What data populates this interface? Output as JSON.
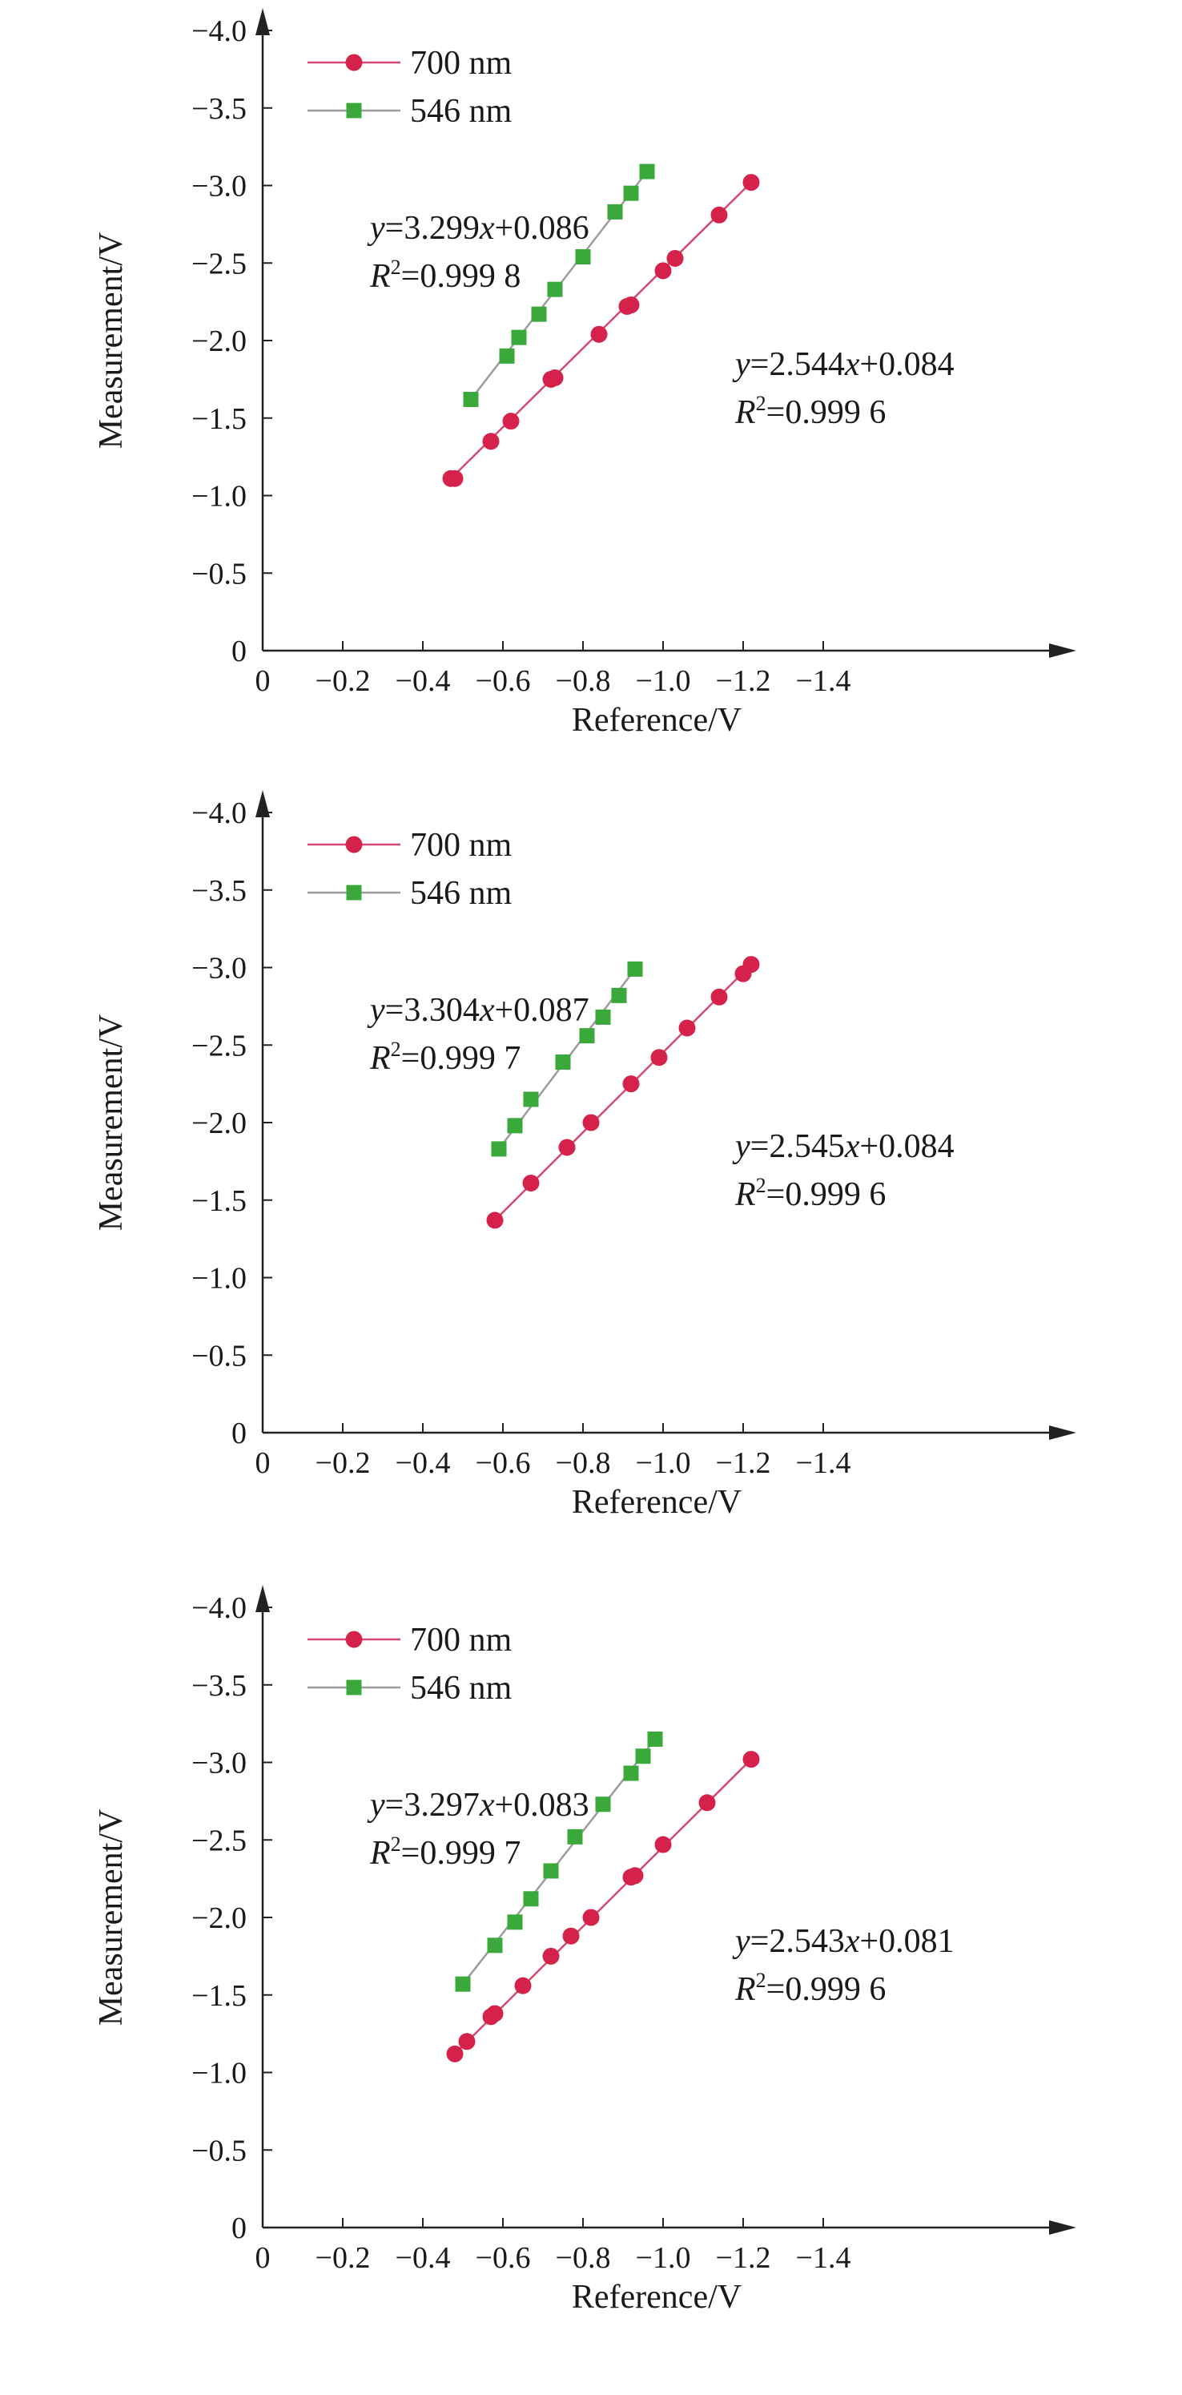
{
  "chart_data": [
    {
      "type": "scatter",
      "xlabel": "Reference/V",
      "ylabel": "Measurement/V",
      "xlim": [
        0,
        -1.4
      ],
      "ylim": [
        0,
        -4.0
      ],
      "x_ticks": [
        "0",
        "−0.2",
        "−0.4",
        "−0.6",
        "−0.8",
        "−1.0",
        "−1.2",
        "−1.4"
      ],
      "y_ticks": [
        "0",
        "−0.5",
        "−1.0",
        "−1.5",
        "−2.0",
        "−2.5",
        "−3.0",
        "−3.5",
        "−4.0"
      ],
      "grid": false,
      "legend_position": "top-left",
      "series": [
        {
          "name": "700 nm",
          "color": "#d5224a",
          "line_color": "#d34a74",
          "marker": "circle",
          "x": [
            -0.47,
            -0.48,
            -0.57,
            -0.62,
            -0.72,
            -0.73,
            -0.84,
            -0.91,
            -0.92,
            -1.0,
            -1.03,
            -1.14,
            -1.22
          ],
          "y": [
            -1.11,
            -1.11,
            -1.35,
            -1.48,
            -1.75,
            -1.76,
            -2.04,
            -2.22,
            -2.23,
            -2.45,
            -2.53,
            -2.81,
            -3.02
          ]
        },
        {
          "name": "546 nm",
          "color": "#3aa83a",
          "line_color": "#9c9c9c",
          "marker": "square",
          "x": [
            -0.52,
            -0.61,
            -0.64,
            -0.69,
            -0.73,
            -0.8,
            -0.88,
            -0.92,
            -0.96
          ],
          "y": [
            -1.62,
            -1.9,
            -2.02,
            -2.17,
            -2.33,
            -2.54,
            -2.83,
            -2.95,
            -3.09
          ]
        }
      ],
      "annotations": [
        {
          "series": "546 nm",
          "eq_y": "y",
          "eq_rest": "=3.299",
          "eq_x": "x",
          "eq_tail": "+0.086",
          "r_base": "R",
          "r_sup": "2",
          "r_value": "=0.999 8"
        },
        {
          "series": "700 nm",
          "eq_y": "y",
          "eq_rest": "=2.544",
          "eq_x": "x",
          "eq_tail": "+0.084",
          "r_base": "R",
          "r_sup": "2",
          "r_value": "=0.999 6"
        }
      ]
    },
    {
      "type": "scatter",
      "xlabel": "Reference/V",
      "ylabel": "Measurement/V",
      "xlim": [
        0,
        -1.4
      ],
      "ylim": [
        0,
        -4.0
      ],
      "x_ticks": [
        "0",
        "−0.2",
        "−0.4",
        "−0.6",
        "−0.8",
        "−1.0",
        "−1.2",
        "−1.4"
      ],
      "y_ticks": [
        "0",
        "−0.5",
        "−1.0",
        "−1.5",
        "−2.0",
        "−2.5",
        "−3.0",
        "−3.5",
        "−4.0"
      ],
      "grid": false,
      "legend_position": "top-left",
      "series": [
        {
          "name": "700 nm",
          "color": "#d5224a",
          "line_color": "#d34a74",
          "marker": "circle",
          "x": [
            -0.58,
            -0.67,
            -0.76,
            -0.82,
            -0.92,
            -0.99,
            -1.06,
            -1.14,
            -1.2,
            -1.22
          ],
          "y": [
            -1.37,
            -1.61,
            -1.84,
            -2.0,
            -2.25,
            -2.42,
            -2.61,
            -2.81,
            -2.96,
            -3.02
          ]
        },
        {
          "name": "546 nm",
          "color": "#3aa83a",
          "line_color": "#9c9c9c",
          "marker": "square",
          "x": [
            -0.59,
            -0.63,
            -0.67,
            -0.75,
            -0.81,
            -0.85,
            -0.89,
            -0.93
          ],
          "y": [
            -1.83,
            -1.98,
            -2.15,
            -2.39,
            -2.56,
            -2.68,
            -2.82,
            -2.99
          ]
        }
      ],
      "annotations": [
        {
          "series": "546 nm",
          "eq_y": "y",
          "eq_rest": "=3.304",
          "eq_x": "x",
          "eq_tail": "+0.087",
          "r_base": "R",
          "r_sup": "2",
          "r_value": "=0.999 7"
        },
        {
          "series": "700 nm",
          "eq_y": "y",
          "eq_rest": "=2.545",
          "eq_x": "x",
          "eq_tail": "+0.084",
          "r_base": "R",
          "r_sup": "2",
          "r_value": "=0.999 6"
        }
      ]
    },
    {
      "type": "scatter",
      "xlabel": "Reference/V",
      "ylabel": "Measurement/V",
      "xlim": [
        0,
        -1.4
      ],
      "ylim": [
        0,
        -4.0
      ],
      "x_ticks": [
        "0",
        "−0.2",
        "−0.4",
        "−0.6",
        "−0.8",
        "−1.0",
        "−1.2",
        "−1.4"
      ],
      "y_ticks": [
        "0",
        "−0.5",
        "−1.0",
        "−1.5",
        "−2.0",
        "−2.5",
        "−3.0",
        "−3.5",
        "−4.0"
      ],
      "grid": false,
      "legend_position": "top-left",
      "series": [
        {
          "name": "700 nm",
          "color": "#d5224a",
          "line_color": "#d34a74",
          "marker": "circle",
          "x": [
            -0.48,
            -0.51,
            -0.57,
            -0.58,
            -0.65,
            -0.72,
            -0.77,
            -0.82,
            -0.92,
            -0.93,
            -1.0,
            -1.11,
            -1.22
          ],
          "y": [
            -1.12,
            -1.2,
            -1.36,
            -1.38,
            -1.56,
            -1.75,
            -1.88,
            -2.0,
            -2.26,
            -2.27,
            -2.47,
            -2.74,
            -3.02
          ]
        },
        {
          "name": "546 nm",
          "color": "#3aa83a",
          "line_color": "#9c9c9c",
          "marker": "square",
          "x": [
            -0.5,
            -0.58,
            -0.63,
            -0.67,
            -0.72,
            -0.78,
            -0.85,
            -0.92,
            -0.95,
            -0.98
          ],
          "y": [
            -1.57,
            -1.82,
            -1.97,
            -2.12,
            -2.3,
            -2.52,
            -2.73,
            -2.93,
            -3.04,
            -3.15
          ]
        }
      ],
      "annotations": [
        {
          "series": "546 nm",
          "eq_y": "y",
          "eq_rest": "=3.297",
          "eq_x": "x",
          "eq_tail": "+0.083",
          "r_base": "R",
          "r_sup": "2",
          "r_value": "=0.999 7"
        },
        {
          "series": "700 nm",
          "eq_y": "y",
          "eq_rest": "=2.543",
          "eq_x": "x",
          "eq_tail": "+0.081",
          "r_base": "R",
          "r_sup": "2",
          "r_value": "=0.999 6"
        }
      ]
    }
  ]
}
